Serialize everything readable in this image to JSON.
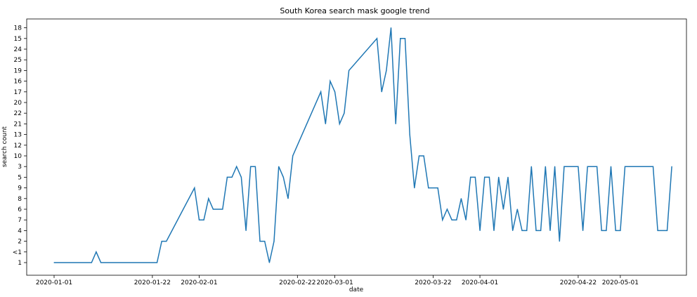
{
  "chart_data": {
    "type": "line",
    "title": "South Korea search mask google trend",
    "xlabel": "date",
    "ylabel": "search count",
    "grid": false,
    "legend": "none",
    "line_color": "#1f77b4",
    "x_ticks": [
      "2020-01-01",
      "2020-01-22",
      "2020-02-01",
      "2020-02-22",
      "2020-03-01",
      "2020-03-22",
      "2020-04-01",
      "2020-04-22",
      "2020-05-01"
    ],
    "y_categories": [
      "1",
      "<1",
      "2",
      "4",
      "7",
      "6",
      "8",
      "9",
      "5",
      "3",
      "10",
      "12",
      "13",
      "21",
      "22",
      "20",
      "17",
      "16",
      "19",
      "25",
      "24",
      "15",
      "18"
    ],
    "series": [
      {
        "points": [
          [
            "2020-01-01",
            "1"
          ],
          [
            "2020-01-09",
            "1"
          ],
          [
            "2020-01-10",
            "<1"
          ],
          [
            "2020-01-11",
            "1"
          ],
          [
            "2020-01-23",
            "1"
          ],
          [
            "2020-01-24",
            "2"
          ],
          [
            "2020-01-25",
            "2"
          ],
          [
            "2020-01-31",
            "9"
          ],
          [
            "2020-02-01",
            "7"
          ],
          [
            "2020-02-02",
            "7"
          ],
          [
            "2020-02-03",
            "8"
          ],
          [
            "2020-02-04",
            "6"
          ],
          [
            "2020-02-06",
            "6"
          ],
          [
            "2020-02-07",
            "5"
          ],
          [
            "2020-02-08",
            "5"
          ],
          [
            "2020-02-09",
            "3"
          ],
          [
            "2020-02-10",
            "5"
          ],
          [
            "2020-02-11",
            "4"
          ],
          [
            "2020-02-12",
            "3"
          ],
          [
            "2020-02-13",
            "3"
          ],
          [
            "2020-02-14",
            "2"
          ],
          [
            "2020-02-15",
            "2"
          ],
          [
            "2020-02-16",
            "1"
          ],
          [
            "2020-02-17",
            "2"
          ],
          [
            "2020-02-18",
            "3"
          ],
          [
            "2020-02-19",
            "5"
          ],
          [
            "2020-02-20",
            "8"
          ],
          [
            "2020-02-21",
            "10"
          ],
          [
            "2020-02-27",
            "17"
          ],
          [
            "2020-02-28",
            "21"
          ],
          [
            "2020-02-29",
            "16"
          ],
          [
            "2020-03-01",
            "17"
          ],
          [
            "2020-03-02",
            "21"
          ],
          [
            "2020-03-03",
            "22"
          ],
          [
            "2020-03-04",
            "19"
          ],
          [
            "2020-03-10",
            "15"
          ],
          [
            "2020-03-11",
            "17"
          ],
          [
            "2020-03-12",
            "19"
          ],
          [
            "2020-03-13",
            "18"
          ],
          [
            "2020-03-14",
            "21"
          ],
          [
            "2020-03-15",
            "15"
          ],
          [
            "2020-03-16",
            "15"
          ],
          [
            "2020-03-17",
            "13"
          ],
          [
            "2020-03-18",
            "9"
          ],
          [
            "2020-03-19",
            "10"
          ],
          [
            "2020-03-20",
            "10"
          ],
          [
            "2020-03-21",
            "9"
          ],
          [
            "2020-03-23",
            "9"
          ],
          [
            "2020-03-24",
            "7"
          ],
          [
            "2020-03-25",
            "6"
          ],
          [
            "2020-03-26",
            "7"
          ],
          [
            "2020-03-27",
            "7"
          ],
          [
            "2020-03-28",
            "8"
          ],
          [
            "2020-03-29",
            "7"
          ],
          [
            "2020-03-30",
            "5"
          ],
          [
            "2020-03-31",
            "5"
          ],
          [
            "2020-04-01",
            "4"
          ],
          [
            "2020-04-02",
            "5"
          ],
          [
            "2020-04-03",
            "5"
          ],
          [
            "2020-04-04",
            "4"
          ],
          [
            "2020-04-05",
            "5"
          ],
          [
            "2020-04-06",
            "6"
          ],
          [
            "2020-04-07",
            "5"
          ],
          [
            "2020-04-08",
            "4"
          ],
          [
            "2020-04-09",
            "6"
          ],
          [
            "2020-04-10",
            "4"
          ],
          [
            "2020-04-11",
            "4"
          ],
          [
            "2020-04-12",
            "3"
          ],
          [
            "2020-04-13",
            "4"
          ],
          [
            "2020-04-14",
            "4"
          ],
          [
            "2020-04-15",
            "3"
          ],
          [
            "2020-04-16",
            "4"
          ],
          [
            "2020-04-17",
            "3"
          ],
          [
            "2020-04-18",
            "2"
          ],
          [
            "2020-04-19",
            "3"
          ],
          [
            "2020-04-22",
            "3"
          ],
          [
            "2020-04-23",
            "4"
          ],
          [
            "2020-04-24",
            "3"
          ],
          [
            "2020-04-26",
            "3"
          ],
          [
            "2020-04-27",
            "4"
          ],
          [
            "2020-04-28",
            "4"
          ],
          [
            "2020-04-29",
            "3"
          ],
          [
            "2020-04-30",
            "4"
          ],
          [
            "2020-05-01",
            "4"
          ],
          [
            "2020-05-02",
            "3"
          ],
          [
            "2020-05-08",
            "3"
          ],
          [
            "2020-05-09",
            "4"
          ],
          [
            "2020-05-11",
            "4"
          ],
          [
            "2020-05-12",
            "3"
          ]
        ]
      }
    ]
  }
}
